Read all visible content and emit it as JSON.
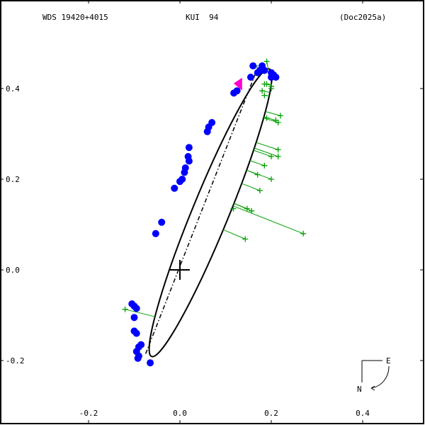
{
  "header": {
    "wds_id": "WDS 19420+4015",
    "discoverer": "KUI  94",
    "reference": "(Doc2025a)"
  },
  "compass": {
    "east_label": "E",
    "north_label": "N"
  },
  "colors": {
    "orbit": "#000000",
    "observations": "#0000ff",
    "residuals_micrometer": "#00a000",
    "current_position_marker": "#ff00cc"
  },
  "chart_data": {
    "type": "scatter",
    "title": "WDS 19420+4015  KUI 94  (Doc2025a)",
    "xlabel": "",
    "ylabel": "",
    "x_ticks": [
      "-0.2",
      "0.0",
      "0.2",
      "0.4"
    ],
    "y_ticks": [
      "0.4",
      "0.2",
      "0.0",
      "-0.2"
    ],
    "xlim": [
      -0.395,
      0.535
    ],
    "ylim": [
      -0.33,
      0.59
    ],
    "grid": false,
    "legend": "none",
    "orbit_ellipse": {
      "center": [
        0.067,
        0.126
      ],
      "semi_major": 0.34,
      "semi_minor": 0.04,
      "angle_deg": -67.7
    },
    "line_of_nodes": [
      [
        -0.075,
        -0.185
      ],
      [
        0.168,
        0.44
      ]
    ],
    "primary_star": [
      0.0,
      0.0
    ],
    "series": [
      {
        "name": "Observations (interferometric)",
        "marker": "filled-circle",
        "color": "#0000ff",
        "points": [
          [
            0.16,
            0.45
          ],
          [
            0.18,
            0.45
          ],
          [
            0.175,
            0.44
          ],
          [
            0.2,
            0.435
          ],
          [
            0.205,
            0.43
          ],
          [
            0.2,
            0.425
          ],
          [
            0.21,
            0.425
          ],
          [
            0.155,
            0.425
          ],
          [
            0.17,
            0.435
          ],
          [
            0.185,
            0.44
          ],
          [
            0.125,
            0.395
          ],
          [
            0.118,
            0.39
          ],
          [
            0.07,
            0.325
          ],
          [
            0.063,
            0.315
          ],
          [
            0.06,
            0.305
          ],
          [
            0.02,
            0.27
          ],
          [
            0.018,
            0.25
          ],
          [
            0.02,
            0.24
          ],
          [
            0.012,
            0.225
          ],
          [
            0.01,
            0.215
          ],
          [
            0.005,
            0.2
          ],
          [
            0.0,
            0.195
          ],
          [
            -0.012,
            0.18
          ],
          [
            -0.04,
            0.105
          ],
          [
            -0.053,
            0.08
          ],
          [
            -0.105,
            -0.075
          ],
          [
            -0.1,
            -0.08
          ],
          [
            -0.095,
            -0.085
          ],
          [
            -0.1,
            -0.105
          ],
          [
            -0.1,
            -0.135
          ],
          [
            -0.095,
            -0.14
          ],
          [
            -0.085,
            -0.165
          ],
          [
            -0.09,
            -0.17
          ],
          [
            -0.095,
            -0.18
          ],
          [
            -0.09,
            -0.19
          ],
          [
            -0.092,
            -0.195
          ],
          [
            -0.065,
            -0.205
          ]
        ]
      },
      {
        "name": "Observations (micrometer)",
        "marker": "plus",
        "color": "#00a000",
        "points": [
          [
            0.19,
            0.46
          ],
          [
            0.165,
            0.45
          ],
          [
            0.185,
            0.41
          ],
          [
            0.19,
            0.41
          ],
          [
            0.2,
            0.405
          ],
          [
            0.18,
            0.395
          ],
          [
            0.185,
            0.385
          ],
          [
            0.2,
            0.4
          ],
          [
            0.22,
            0.34
          ],
          [
            0.19,
            0.335
          ],
          [
            0.21,
            0.33
          ],
          [
            0.215,
            0.325
          ],
          [
            0.215,
            0.265
          ],
          [
            0.215,
            0.25
          ],
          [
            0.2,
            0.25
          ],
          [
            0.2,
            0.2
          ],
          [
            0.185,
            0.23
          ],
          [
            0.17,
            0.21
          ],
          [
            0.175,
            0.175
          ],
          [
            0.117,
            0.135
          ],
          [
            0.147,
            0.135
          ],
          [
            0.157,
            0.13
          ],
          [
            0.143,
            0.068
          ],
          [
            0.27,
            0.08
          ],
          [
            -0.12,
            -0.087
          ]
        ]
      },
      {
        "name": "Current position",
        "marker": "triangle",
        "color": "#ff00cc",
        "points": [
          [
            0.13,
            0.405
          ]
        ]
      }
    ]
  }
}
